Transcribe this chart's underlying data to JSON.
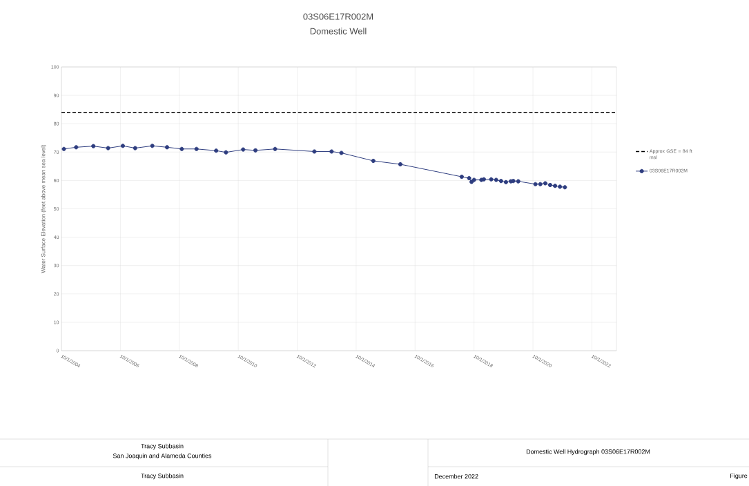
{
  "chart_data": {
    "type": "line",
    "title": "03S06E17R002M",
    "subtitle": "Domestic Well",
    "ylabel": "Water Surface Elevation (feet above mean sea level)",
    "x": [
      "2004-11",
      "2005-04",
      "2005-11",
      "2006-05",
      "2006-11",
      "2007-04",
      "2007-11",
      "2008-05",
      "2008-11",
      "2009-05",
      "2010-01",
      "2010-05",
      "2010-12",
      "2011-05",
      "2012-01",
      "2013-05",
      "2013-12",
      "2014-04",
      "2015-05",
      "2016-04",
      "2018-05",
      "2018-08",
      "2018-09",
      "2018-10",
      "2019-01",
      "2019-02",
      "2019-05",
      "2019-07",
      "2019-09",
      "2019-11",
      "2020-01",
      "2020-02",
      "2020-04",
      "2020-11",
      "2021-01",
      "2021-03",
      "2021-05",
      "2021-07",
      "2021-09",
      "2021-11"
    ],
    "series": [
      {
        "name": "03S06E17R002M",
        "color": "#2e3d7f",
        "values": [
          71.1,
          71.7,
          72.1,
          71.4,
          72.2,
          71.4,
          72.2,
          71.7,
          71.1,
          71.1,
          70.5,
          69.9,
          70.9,
          70.6,
          71.1,
          70.2,
          70.2,
          69.7,
          66.9,
          65.7,
          61.3,
          60.8,
          59.5,
          60.2,
          60.2,
          60.4,
          60.4,
          60.2,
          59.8,
          59.4,
          59.7,
          59.8,
          59.7,
          58.7,
          58.7,
          59.0,
          58.4,
          58.1,
          57.8,
          57.6
        ]
      }
    ],
    "ref_lines": [
      {
        "axis": "y",
        "value": 84,
        "label": "Approx GSE = 84 ft msl",
        "color": "#000000",
        "line_style": "dashed"
      }
    ],
    "xlim": [
      "2004-10-01",
      "2023-08-01"
    ],
    "xticks": [
      {
        "value": "2004-10-01",
        "label": "10/1/2004"
      },
      {
        "value": "2006-10-01",
        "label": "10/1/2006"
      },
      {
        "value": "2008-10-01",
        "label": "10/1/2008"
      },
      {
        "value": "2010-10-01",
        "label": "10/1/2010"
      },
      {
        "value": "2012-10-01",
        "label": "10/1/2012"
      },
      {
        "value": "2014-10-01",
        "label": "10/1/2014"
      },
      {
        "value": "2016-10-01",
        "label": "10/1/2016"
      },
      {
        "value": "2018-10-01",
        "label": "10/1/2018"
      },
      {
        "value": "2020-10-01",
        "label": "10/1/2020"
      },
      {
        "value": "2022-10-01",
        "label": "10/1/2022"
      }
    ],
    "ylim": [
      0,
      100
    ],
    "yticks": [
      0,
      10,
      20,
      30,
      40,
      50,
      60,
      70,
      80,
      90,
      100
    ],
    "grid": true,
    "legend": "right",
    "marker": "circle",
    "line_style": "solid",
    "annotations": [
      "Tracy Subbasin",
      "San Joaquin and Alameda Counties",
      "Tracy Subbasin",
      "Domestic Well Hydrograph 03S06E17R002M",
      "December 2022",
      "Figure"
    ]
  }
}
